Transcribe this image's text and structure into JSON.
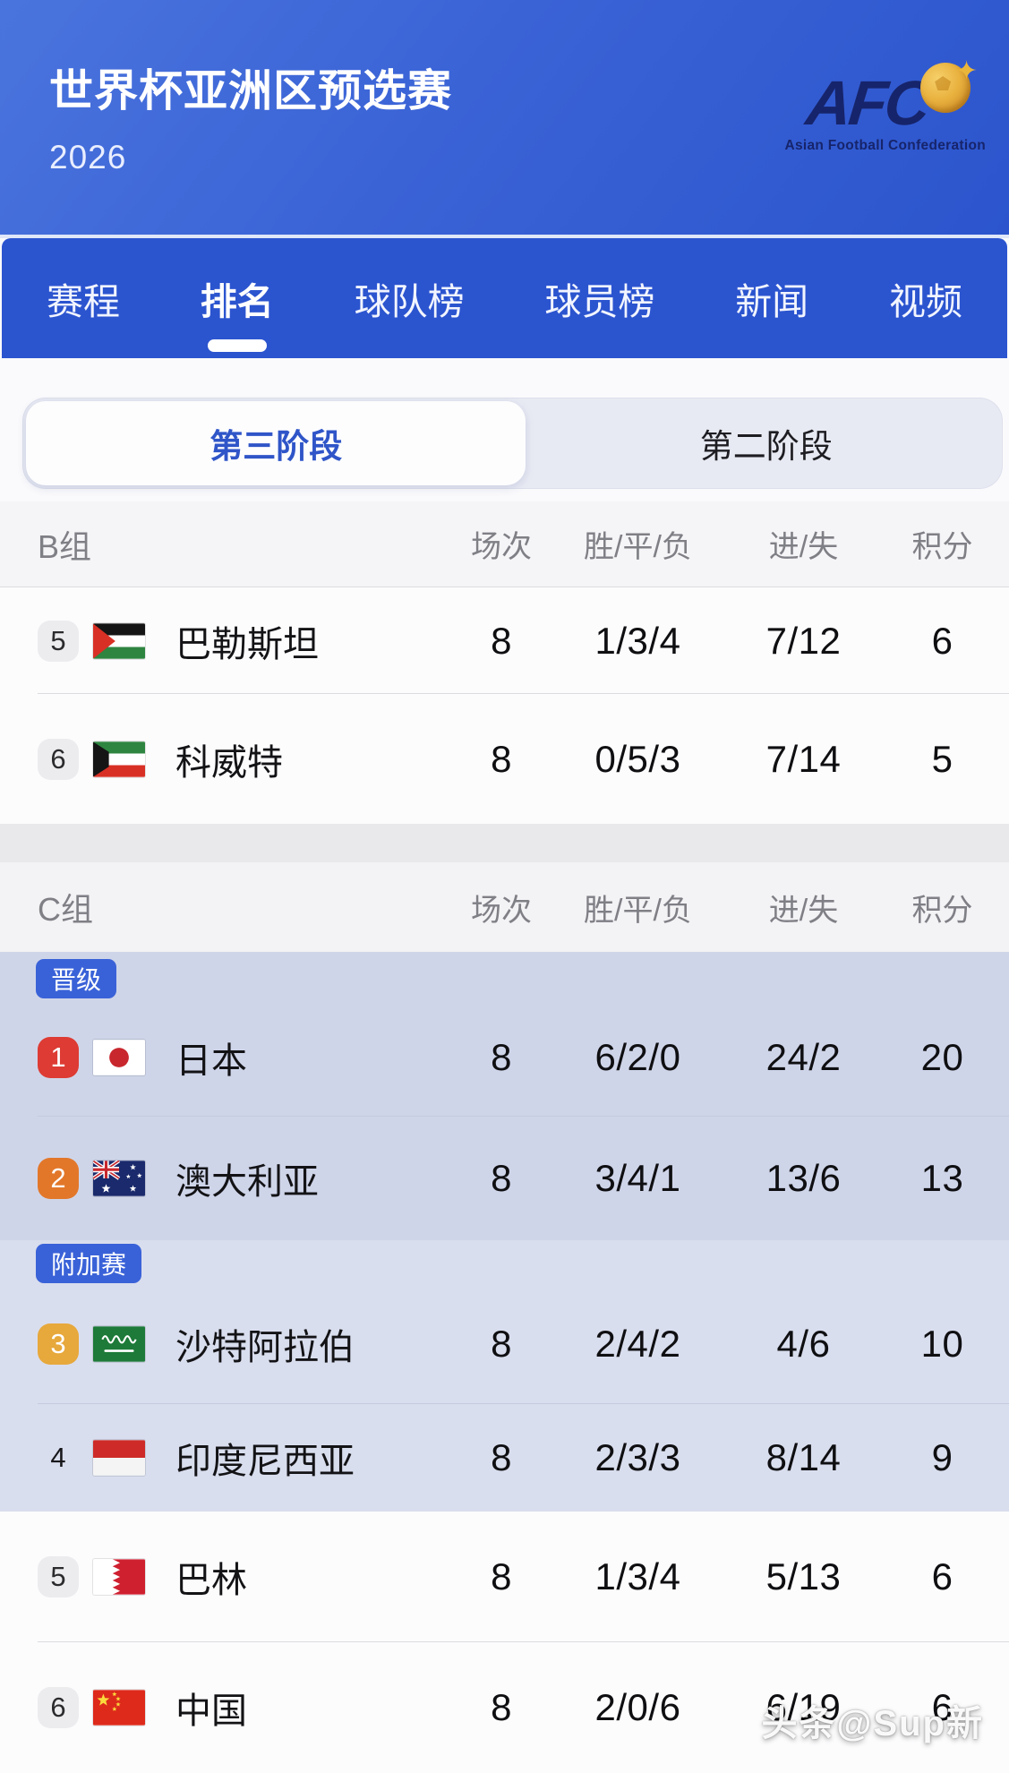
{
  "header": {
    "title": "世界杯亚洲区预选赛",
    "season": "2026",
    "afc": {
      "acronym": "AFC",
      "caption": "Asian Football Confederation"
    }
  },
  "nav": {
    "tabs": [
      {
        "label": "赛程",
        "active": false
      },
      {
        "label": "排名",
        "active": true
      },
      {
        "label": "球队榜",
        "active": false
      },
      {
        "label": "球员榜",
        "active": false
      },
      {
        "label": "新闻",
        "active": false
      },
      {
        "label": "视频",
        "active": false
      }
    ]
  },
  "stage_tabs": [
    {
      "label": "第三阶段",
      "active": true
    },
    {
      "label": "第二阶段",
      "active": false
    }
  ],
  "columns": {
    "played": "场次",
    "wdl": "胜/平/负",
    "goals": "进/失",
    "points": "积分"
  },
  "group_b": {
    "name": "B组",
    "rows": [
      {
        "rank": "5",
        "rank_style": "gray",
        "flag": "palestine",
        "team": "巴勒斯坦",
        "played": "8",
        "wdl": "1/3/4",
        "goals": "7/12",
        "points": "6"
      },
      {
        "rank": "6",
        "rank_style": "gray",
        "flag": "kuwait",
        "team": "科威特",
        "played": "8",
        "wdl": "0/5/3",
        "goals": "7/14",
        "points": "5"
      }
    ]
  },
  "group_c": {
    "name": "C组",
    "items": [
      {
        "type": "badge",
        "zone": "promotion",
        "label": "晋级"
      },
      {
        "type": "team",
        "zone": "promotion",
        "rank": "1",
        "rank_style": "red",
        "flag": "japan",
        "team": "日本",
        "played": "8",
        "wdl": "6/2/0",
        "goals": "24/2",
        "points": "20"
      },
      {
        "type": "team",
        "zone": "promotion",
        "rank": "2",
        "rank_style": "orange",
        "flag": "australia",
        "team": "澳大利亚",
        "played": "8",
        "wdl": "3/4/1",
        "goals": "13/6",
        "points": "13"
      },
      {
        "type": "badge",
        "zone": "playoff",
        "label": "附加赛"
      },
      {
        "type": "team",
        "zone": "playoff",
        "rank": "3",
        "rank_style": "amber",
        "flag": "saudi-arabia",
        "team": "沙特阿拉伯",
        "played": "8",
        "wdl": "2/4/2",
        "goals": "4/6",
        "points": "10"
      },
      {
        "type": "team",
        "zone": "playoff",
        "rank": "4",
        "rank_style": "plain",
        "flag": "indonesia",
        "team": "印度尼西亚",
        "played": "8",
        "wdl": "2/3/3",
        "goals": "8/14",
        "points": "9"
      },
      {
        "type": "team",
        "zone": "plain",
        "rank": "5",
        "rank_style": "gray",
        "flag": "bahrain",
        "team": "巴林",
        "played": "8",
        "wdl": "1/3/4",
        "goals": "5/13",
        "points": "6"
      },
      {
        "type": "team",
        "zone": "plain",
        "rank": "6",
        "rank_style": "gray",
        "flag": "china",
        "team": "中国",
        "played": "8",
        "wdl": "2/0/6",
        "goals": "6/19",
        "points": "6"
      }
    ]
  },
  "watermark": "头条@Sup新",
  "colors": {
    "header_blue_top": "#4a74dd",
    "header_blue_bottom": "#2c55cd",
    "navbar_blue": "#2b54cf",
    "segment_active_text": "#2f55c8",
    "qualify_badge_blue": "#3a62d8",
    "rank_red": "#dd3b33",
    "rank_orange": "#e2772a",
    "rank_amber": "#e7a83c",
    "highlight_promotion": "#cfd5e9",
    "highlight_playoff": "#d9deee"
  }
}
